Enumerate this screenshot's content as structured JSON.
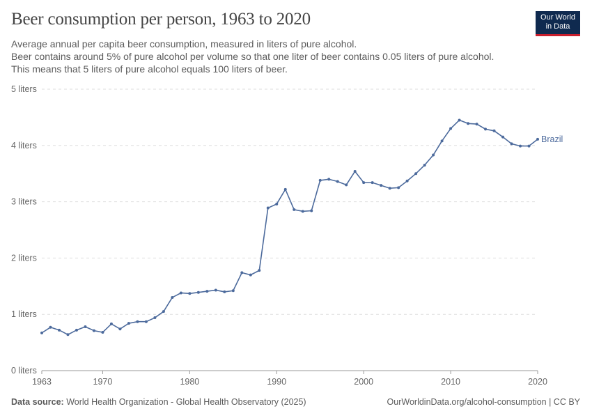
{
  "title": "Beer consumption per person, 1963 to 2020",
  "subtitle": [
    "Average annual per capita beer consumption, measured in liters of pure alcohol.",
    "Beer contains around 5% of pure alcohol per volume so that one liter of beer contains 0.05 liters of pure alcohol. This means that 5 liters of pure alcohol equals 100 liters of beer."
  ],
  "logo": [
    "Our World",
    "in Data"
  ],
  "footer": {
    "source_label": "Data source:",
    "source": "World Health Organization - Global Health Observatory (2025)",
    "credit": "OurWorldinData.org/alcohol-consumption | CC BY"
  },
  "colors": {
    "series": "#4c6a9c",
    "grid": "#dddddd",
    "axis": "#999999"
  },
  "chart_data": {
    "type": "line",
    "title": "Beer consumption per person, 1963 to 2020",
    "ylim": [
      0,
      5
    ],
    "xlim": [
      1963,
      2020
    ],
    "yticks": [
      0,
      1,
      2,
      3,
      4,
      5
    ],
    "ytick_labels": [
      "0 liters",
      "1 liters",
      "2 liters",
      "3 liters",
      "4 liters",
      "5 liters"
    ],
    "xticks": [
      1963,
      1970,
      1980,
      1990,
      2000,
      2010,
      2020
    ],
    "grid": "horizontal dashed",
    "series": [
      {
        "name": "Brazil",
        "x": [
          1963,
          1964,
          1965,
          1966,
          1967,
          1968,
          1969,
          1970,
          1971,
          1972,
          1973,
          1974,
          1975,
          1976,
          1977,
          1978,
          1979,
          1980,
          1981,
          1982,
          1983,
          1984,
          1985,
          1986,
          1987,
          1988,
          1989,
          1990,
          1991,
          1992,
          1993,
          1994,
          1995,
          1996,
          1997,
          1998,
          1999,
          2000,
          2001,
          2002,
          2003,
          2004,
          2005,
          2006,
          2007,
          2008,
          2009,
          2010,
          2011,
          2012,
          2013,
          2014,
          2015,
          2016,
          2017,
          2018,
          2019,
          2020
        ],
        "y": [
          0.67,
          0.77,
          0.72,
          0.64,
          0.72,
          0.78,
          0.71,
          0.68,
          0.83,
          0.74,
          0.84,
          0.87,
          0.87,
          0.94,
          1.05,
          1.3,
          1.38,
          1.37,
          1.39,
          1.41,
          1.43,
          1.4,
          1.42,
          1.74,
          1.7,
          1.78,
          2.89,
          2.96,
          3.22,
          2.86,
          2.83,
          2.84,
          3.38,
          3.4,
          3.36,
          3.3,
          3.54,
          3.34,
          3.34,
          3.29,
          3.24,
          3.25,
          3.37,
          3.5,
          3.65,
          3.83,
          4.08,
          4.3,
          4.45,
          4.39,
          4.38,
          4.29,
          4.26,
          4.15,
          4.03,
          3.99,
          3.99,
          4.11
        ]
      }
    ]
  }
}
